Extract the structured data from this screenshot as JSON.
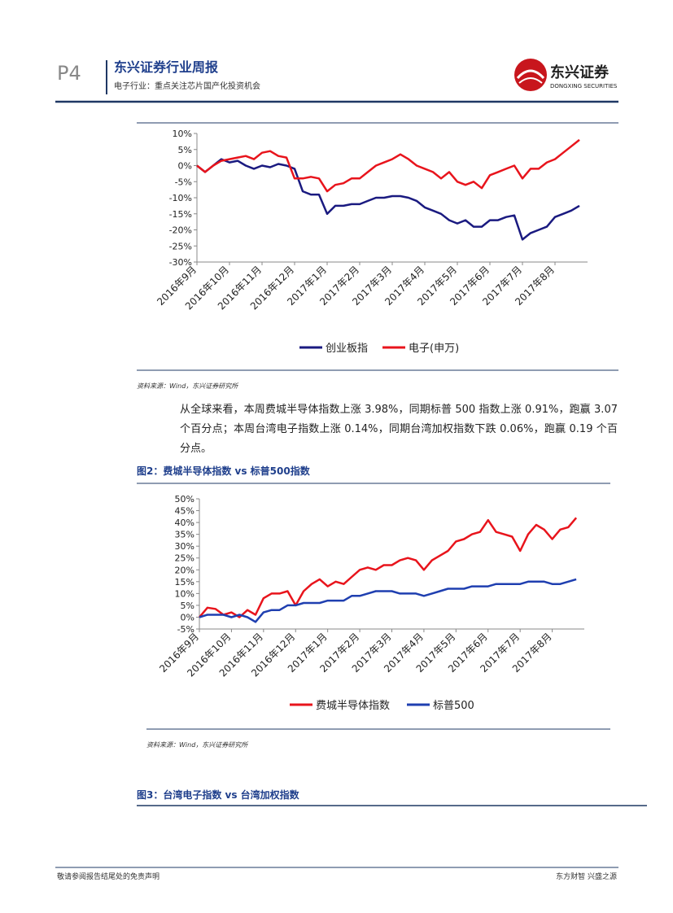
{
  "header": {
    "page": "P4",
    "title": "东兴证券行业周报",
    "subtitle": "电子行业：重点关注芯片国产化投资机会",
    "logo": "东兴证券",
    "logo_en": "DONGXING SECURITIES"
  },
  "charts": [
    {
      "type": "line",
      "source": "资料来源：Wind，东兴证券研究所",
      "x": [
        0,
        0.25,
        0.5,
        0.75,
        1,
        1.25,
        1.5,
        1.75,
        2,
        2.25,
        2.5,
        2.75,
        3,
        3.25,
        3.5,
        3.75,
        4,
        4.25,
        4.5,
        4.75,
        5,
        5.25,
        5.5,
        5.75,
        6,
        6.25,
        6.5,
        6.75,
        7,
        7.25,
        7.5,
        7.75,
        8,
        8.25,
        8.5,
        8.75,
        9,
        9.25,
        9.5,
        9.75,
        10,
        10.25,
        10.5,
        10.75,
        11,
        11.25,
        11.5,
        11.75
      ],
      "xlim": [
        0,
        12
      ],
      "xticks": [
        {
          "value": 0,
          "label": "2016年9月"
        },
        {
          "value": 1,
          "label": "2016年10月"
        },
        {
          "value": 2,
          "label": "2016年11月"
        },
        {
          "value": 3,
          "label": "2016年12月"
        },
        {
          "value": 4,
          "label": "2017年1月"
        },
        {
          "value": 5,
          "label": "2017年2月"
        },
        {
          "value": 6,
          "label": "2017年3月"
        },
        {
          "value": 7,
          "label": "2017年4月"
        },
        {
          "value": 8,
          "label": "2017年5月"
        },
        {
          "value": 9,
          "label": "2017年6月"
        },
        {
          "value": 10,
          "label": "2017年7月"
        },
        {
          "value": 11,
          "label": "2017年8月"
        }
      ],
      "ylim": [
        -30,
        10
      ],
      "yticks": [
        {
          "value": -30,
          "label": "-30%"
        },
        {
          "value": -25,
          "label": "-25%"
        },
        {
          "value": -20,
          "label": "-20%"
        },
        {
          "value": -15,
          "label": "-15%"
        },
        {
          "value": -10,
          "label": "-10%"
        },
        {
          "value": -5,
          "label": "-5%"
        },
        {
          "value": 0,
          "label": "0%"
        },
        {
          "value": 5,
          "label": "5%"
        },
        {
          "value": 10,
          "label": "10%"
        }
      ],
      "series": [
        {
          "name": "创业板指",
          "color": "#1a1a80",
          "values": [
            0,
            -2,
            0,
            2,
            1,
            1.5,
            0,
            -1,
            0,
            -0.5,
            0.5,
            0,
            -1,
            -8,
            -9,
            -9,
            -15,
            -12.5,
            -12.5,
            -12,
            -12,
            -11,
            -10,
            -10,
            -9.5,
            -9.5,
            -10,
            -11,
            -13,
            -14,
            -15,
            -17,
            -18,
            -17,
            -19,
            -19,
            -17,
            -17,
            -16,
            -15.5,
            -23,
            -21,
            -20,
            -19,
            -16,
            -15,
            -14,
            -12.5
          ]
        },
        {
          "name": "电子(申万)",
          "color": "#e8141c",
          "values": [
            0,
            -2,
            0,
            1.5,
            2,
            2.5,
            3,
            2,
            4,
            4.5,
            3,
            2.5,
            -4,
            -4,
            -3.5,
            -4,
            -8,
            -6,
            -5.5,
            -4,
            -4,
            -2,
            0,
            1,
            2,
            3.5,
            2,
            0,
            -1,
            -2,
            -4,
            -2,
            -5,
            -6,
            -5,
            -7,
            -3,
            -2,
            -1,
            0,
            -4,
            -1,
            -1,
            1,
            2,
            4,
            6,
            8
          ]
        }
      ]
    },
    {
      "type": "line",
      "caption": "图2：费城半导体指数 vs 标普500指数",
      "source": "资料来源：Wind，东兴证券研究所",
      "x": [
        0,
        0.25,
        0.5,
        0.75,
        1,
        1.25,
        1.5,
        1.75,
        2,
        2.25,
        2.5,
        2.75,
        3,
        3.25,
        3.5,
        3.75,
        4,
        4.25,
        4.5,
        4.75,
        5,
        5.25,
        5.5,
        5.75,
        6,
        6.25,
        6.5,
        6.75,
        7,
        7.25,
        7.5,
        7.75,
        8,
        8.25,
        8.5,
        8.75,
        9,
        9.25,
        9.5,
        9.75,
        10,
        10.25,
        10.5,
        10.75,
        11,
        11.25,
        11.5,
        11.75
      ],
      "xlim": [
        0,
        12
      ],
      "xticks": [
        {
          "value": 0,
          "label": "2016年9月"
        },
        {
          "value": 1,
          "label": "2016年10月"
        },
        {
          "value": 2,
          "label": "2016年11月"
        },
        {
          "value": 3,
          "label": "2016年12月"
        },
        {
          "value": 4,
          "label": "2017年1月"
        },
        {
          "value": 5,
          "label": "2017年2月"
        },
        {
          "value": 6,
          "label": "2017年3月"
        },
        {
          "value": 7,
          "label": "2017年4月"
        },
        {
          "value": 8,
          "label": "2017年5月"
        },
        {
          "value": 9,
          "label": "2017年6月"
        },
        {
          "value": 10,
          "label": "2017年7月"
        },
        {
          "value": 11,
          "label": "2017年8月"
        }
      ],
      "ylim": [
        -5,
        50
      ],
      "yticks": [
        {
          "value": -5,
          "label": "-5%"
        },
        {
          "value": 0,
          "label": "0%"
        },
        {
          "value": 5,
          "label": "5%"
        },
        {
          "value": 10,
          "label": "10%"
        },
        {
          "value": 15,
          "label": "15%"
        },
        {
          "value": 20,
          "label": "20%"
        },
        {
          "value": 25,
          "label": "25%"
        },
        {
          "value": 30,
          "label": "30%"
        },
        {
          "value": 35,
          "label": "35%"
        },
        {
          "value": 40,
          "label": "40%"
        },
        {
          "value": 45,
          "label": "45%"
        },
        {
          "value": 50,
          "label": "50%"
        }
      ],
      "series": [
        {
          "name": "费城半导体指数",
          "color": "#e8141c",
          "values": [
            0,
            4,
            3.5,
            1,
            2,
            0,
            3,
            1,
            8,
            10,
            10,
            11,
            5,
            11,
            14,
            16,
            13,
            15,
            14,
            17,
            20,
            21,
            20,
            22,
            22,
            24,
            25,
            24,
            20,
            24,
            26,
            28,
            32,
            33,
            35,
            36,
            41,
            36,
            35,
            34,
            28,
            35,
            39,
            37,
            33,
            37,
            38,
            42
          ]
        },
        {
          "name": "标普500",
          "color": "#1f3fb0",
          "values": [
            0,
            1,
            1,
            1,
            0,
            1,
            0,
            -2,
            2,
            3,
            3,
            5,
            5,
            6,
            6,
            6,
            7,
            7,
            7,
            9,
            9,
            10,
            11,
            11,
            11,
            10,
            10,
            10,
            9,
            10,
            11,
            12,
            12,
            12,
            13,
            13,
            13,
            14,
            14,
            14,
            14,
            15,
            15,
            15,
            14,
            14,
            15,
            16
          ]
        }
      ]
    }
  ],
  "paragraph": "从全球来看，本周费城半导体指数上涨 3.98%，同期标普 500 指数上涨 0.91%，跑赢 3.07 个百分点；本周台湾电子指数上涨 0.14%，同期台湾加权指数下跌 0.06%，跑赢 0.19 个百分点。",
  "caption3": "图3：台湾电子指数 vs 台湾加权指数",
  "footer": {
    "left": "敬请参阅报告结尾处的免责声明",
    "right": "东方财智 兴盛之源"
  }
}
